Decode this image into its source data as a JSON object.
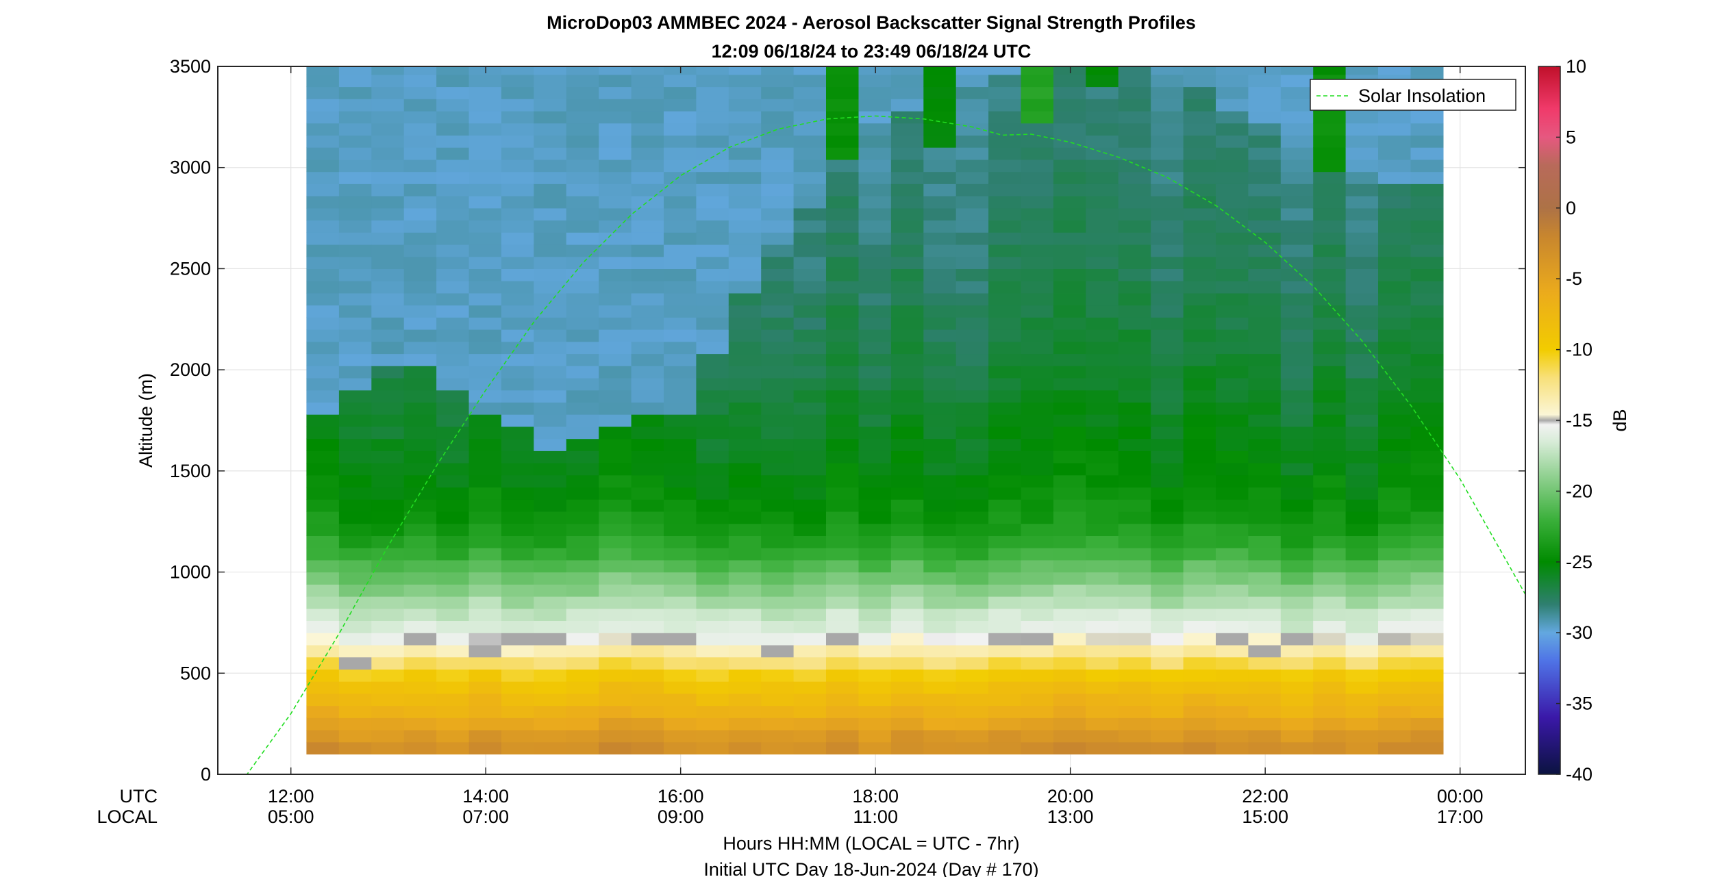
{
  "chart_data": {
    "type": "heatmap",
    "title": "MicroDop03 AMMBEC 2024 - Aerosol Backscatter Signal Strength Profiles",
    "subtitle": "12:09 06/18/24 to 23:49 06/18/24  UTC",
    "ylabel": "Altitude (m)",
    "xlabel": "Hours HH:MM  (LOCAL = UTC - 7hr)",
    "xlabel2": "Initial UTC Day 18-Jun-2024 (Day # 170)",
    "x_row_labels": [
      "UTC",
      "LOCAL"
    ],
    "x_range_hours_utc": [
      11.25,
      24.67
    ],
    "ylim": [
      0,
      3500
    ],
    "grid": true,
    "x_ticks": [
      {
        "hour": 12,
        "utc": "12:00",
        "local": "05:00"
      },
      {
        "hour": 14,
        "utc": "14:00",
        "local": "07:00"
      },
      {
        "hour": 16,
        "utc": "16:00",
        "local": "09:00"
      },
      {
        "hour": 18,
        "utc": "18:00",
        "local": "11:00"
      },
      {
        "hour": 20,
        "utc": "20:00",
        "local": "13:00"
      },
      {
        "hour": 22,
        "utc": "22:00",
        "local": "15:00"
      },
      {
        "hour": 24,
        "utc": "00:00",
        "local": "17:00"
      }
    ],
    "y_ticks": [
      {
        "value": 0,
        "label": "0"
      },
      {
        "value": 500,
        "label": "500"
      },
      {
        "value": 1000,
        "label": "1000"
      },
      {
        "value": 1500,
        "label": "1500"
      },
      {
        "value": 2000,
        "label": "2000"
      },
      {
        "value": 2500,
        "label": "2500"
      },
      {
        "value": 3000,
        "label": "3000"
      },
      {
        "value": 3500,
        "label": "3500"
      }
    ],
    "colorbar": {
      "label": "dB",
      "range": [
        -40,
        10
      ],
      "ticks": [
        {
          "value": 10,
          "label": "10"
        },
        {
          "value": 5,
          "label": "5"
        },
        {
          "value": 0,
          "label": "0"
        },
        {
          "value": -5,
          "label": "-5"
        },
        {
          "value": -10,
          "label": "-10"
        },
        {
          "value": -15,
          "label": "-15"
        },
        {
          "value": -20,
          "label": "-20"
        },
        {
          "value": -25,
          "label": "-25"
        },
        {
          "value": -30,
          "label": "-30"
        },
        {
          "value": -35,
          "label": "-35"
        },
        {
          "value": -40,
          "label": "-40"
        }
      ],
      "stops": [
        {
          "db": -40,
          "color": "#0b1340"
        },
        {
          "db": -36,
          "color": "#3a18a8"
        },
        {
          "db": -32,
          "color": "#4f73e6"
        },
        {
          "db": -30,
          "color": "#63a8e0"
        },
        {
          "db": -28,
          "color": "#2f7f70"
        },
        {
          "db": -25,
          "color": "#008b00"
        },
        {
          "db": -22,
          "color": "#3bb03b"
        },
        {
          "db": -19,
          "color": "#8fd08f"
        },
        {
          "db": -16.5,
          "color": "#d8ecd8"
        },
        {
          "db": -15.3,
          "color": "#f2f2f2"
        },
        {
          "db": -15,
          "color": "#a8a8a8"
        },
        {
          "db": -14.6,
          "color": "#fbf6d6"
        },
        {
          "db": -12,
          "color": "#f8e07a"
        },
        {
          "db": -10,
          "color": "#f2cc00"
        },
        {
          "db": -6,
          "color": "#ebab1c"
        },
        {
          "db": -2,
          "color": "#c8862e"
        },
        {
          "db": 0,
          "color": "#ad7246"
        },
        {
          "db": 3,
          "color": "#b86a5a"
        },
        {
          "db": 5,
          "color": "#e65880"
        },
        {
          "db": 7,
          "color": "#f03a6a"
        },
        {
          "db": 10,
          "color": "#c0102a"
        }
      ]
    },
    "heatmap": {
      "time_start_hours": 12.16,
      "time_end_hours": 23.83,
      "time_step_hours": 0.3333,
      "altitude_start_m": 100,
      "altitude_top_m": 3500,
      "altitude_step_m": 60,
      "profile_db_by_altitude": [
        {
          "alt": 100,
          "db": -2.5
        },
        {
          "alt": 200,
          "db": -4.0
        },
        {
          "alt": 300,
          "db": -6.5
        },
        {
          "alt": 400,
          "db": -8.0
        },
        {
          "alt": 500,
          "db": -10.0
        },
        {
          "alt": 600,
          "db": -13.0
        },
        {
          "alt": 700,
          "db": -15.8
        },
        {
          "alt": 800,
          "db": -17.0
        },
        {
          "alt": 900,
          "db": -18.8
        },
        {
          "alt": 1000,
          "db": -20.5
        },
        {
          "alt": 1100,
          "db": -22.3
        },
        {
          "alt": 1200,
          "db": -23.6
        },
        {
          "alt": 1300,
          "db": -24.4
        },
        {
          "alt": 1500,
          "db": -25.2
        },
        {
          "alt": 1800,
          "db": -26.0
        },
        {
          "alt": 2000,
          "db": -26.6
        },
        {
          "alt": 2400,
          "db": -27.4
        },
        {
          "alt": 3000,
          "db": -28.2
        },
        {
          "alt": 3500,
          "db": -28.6
        }
      ],
      "morning_clean_air_db": -29.5,
      "morning_boundary_m": [
        1800,
        1900,
        2000,
        2000,
        1900,
        1800,
        1700,
        1600,
        1650,
        1700,
        1750,
        1800,
        2100,
        2400,
        2600,
        2800,
        3100,
        3200,
        3300,
        3300,
        3400,
        3450,
        3500,
        3500,
        3500,
        3500,
        3400,
        3400,
        3300,
        3200,
        3100,
        3100,
        3000,
        2900,
        2900,
        2800
      ],
      "cloud_columns": [
        {
          "time_hours": 17.33,
          "width_hours": 0.33,
          "alt_bottom_m": 3050,
          "db": -24.5
        },
        {
          "time_hours": 18.33,
          "width_hours": 0.33,
          "alt_bottom_m": 3100,
          "db": -25.0
        },
        {
          "time_hours": 19.33,
          "width_hours": 0.33,
          "alt_bottom_m": 3200,
          "db": -23.0
        },
        {
          "time_hours": 20.0,
          "width_hours": 0.33,
          "alt_bottom_m": 3420,
          "db": -25.5
        },
        {
          "time_hours": 22.33,
          "width_hours": 0.33,
          "alt_bottom_m": 3000,
          "db": -24.5
        }
      ],
      "gray_band": {
        "db": -15.0,
        "alt_m": [
          550,
          700
        ]
      }
    },
    "series": [
      {
        "name": "Solar Insolation",
        "color": "#22dd22",
        "style": "dashed",
        "points": [
          [
            11.25,
            0
          ],
          [
            11.55,
            0
          ],
          [
            12.0,
            300
          ],
          [
            12.5,
            700
          ],
          [
            13.0,
            1130
          ],
          [
            13.5,
            1530
          ],
          [
            14.0,
            1900
          ],
          [
            14.5,
            2240
          ],
          [
            15.0,
            2530
          ],
          [
            15.5,
            2770
          ],
          [
            16.0,
            2960
          ],
          [
            16.5,
            3100
          ],
          [
            17.0,
            3190
          ],
          [
            17.5,
            3240
          ],
          [
            18.0,
            3255
          ],
          [
            18.5,
            3240
          ],
          [
            19.0,
            3200
          ],
          [
            19.3,
            3160
          ],
          [
            19.6,
            3165
          ],
          [
            20.0,
            3125
          ],
          [
            20.5,
            3050
          ],
          [
            21.0,
            2950
          ],
          [
            21.5,
            2810
          ],
          [
            22.0,
            2630
          ],
          [
            22.5,
            2410
          ],
          [
            23.0,
            2140
          ],
          [
            23.5,
            1820
          ],
          [
            24.0,
            1460
          ],
          [
            24.67,
            890
          ]
        ]
      }
    ],
    "legend": {
      "placement": "top-right",
      "entries": [
        "Solar Insolation"
      ]
    }
  }
}
